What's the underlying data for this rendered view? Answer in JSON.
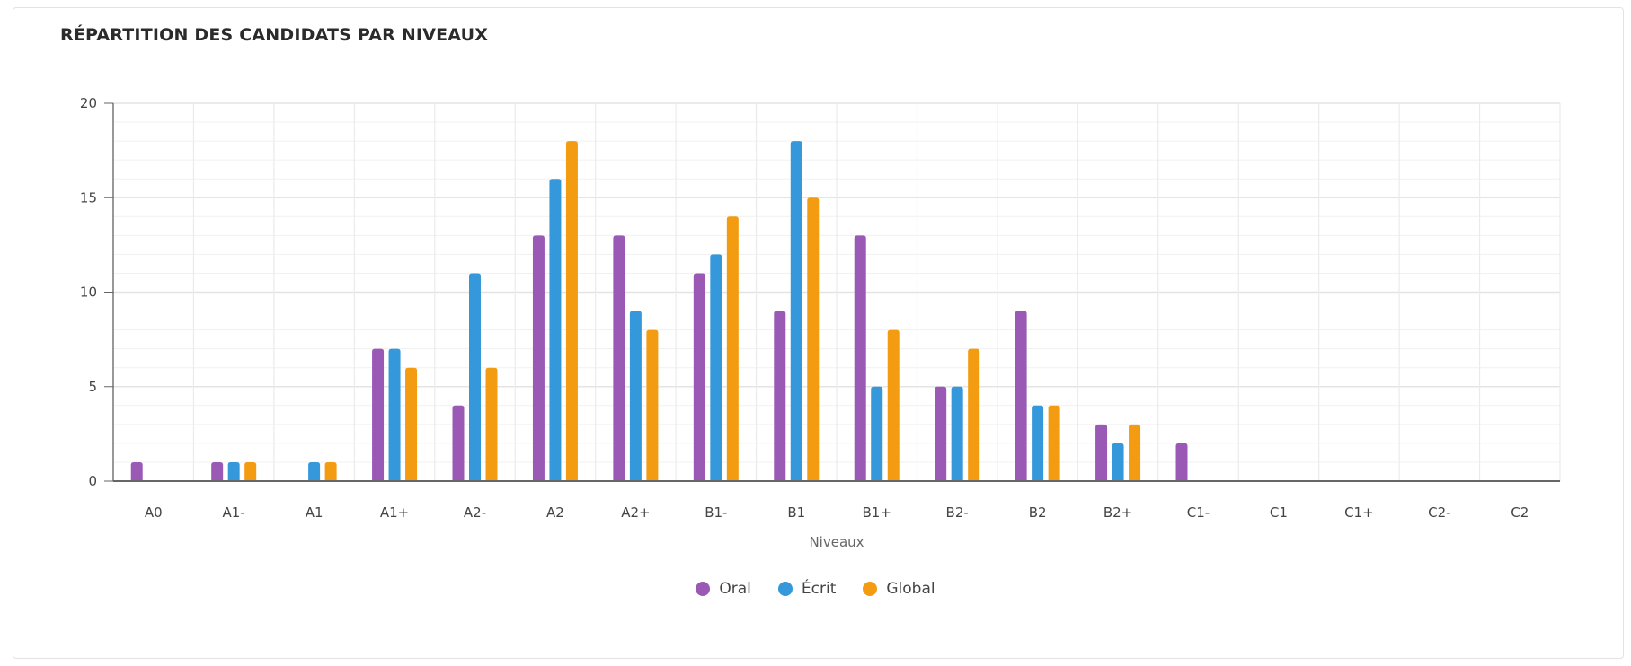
{
  "chart_data": {
    "type": "bar",
    "title": "RÉPARTITION DES CANDIDATS PAR NIVEAUX",
    "xlabel": "Niveaux",
    "ylabel": "",
    "ylim": [
      0,
      20
    ],
    "yticks": [
      "0",
      "5",
      "10",
      "15",
      "20"
    ],
    "grid": true,
    "legend_position": "bottom",
    "categories": [
      "A0",
      "A1-",
      "A1",
      "A1+",
      "A2-",
      "A2",
      "A2+",
      "B1-",
      "B1",
      "B1+",
      "B2-",
      "B2",
      "B2+",
      "C1-",
      "C1",
      "C1+",
      "C2-",
      "C2"
    ],
    "series": [
      {
        "name": "Oral",
        "color": "#9b59b6",
        "values": [
          1,
          1,
          0,
          7,
          4,
          13,
          13,
          11,
          9,
          13,
          5,
          9,
          3,
          2,
          0,
          0,
          0,
          0
        ]
      },
      {
        "name": "Écrit",
        "color": "#3498db",
        "values": [
          0,
          1,
          1,
          7,
          11,
          16,
          9,
          12,
          18,
          5,
          5,
          4,
          2,
          0,
          0,
          0,
          0,
          0
        ]
      },
      {
        "name": "Global",
        "color": "#f39c12",
        "values": [
          0,
          1,
          1,
          6,
          6,
          18,
          8,
          14,
          15,
          8,
          7,
          4,
          3,
          0,
          0,
          0,
          0,
          0
        ]
      }
    ]
  }
}
